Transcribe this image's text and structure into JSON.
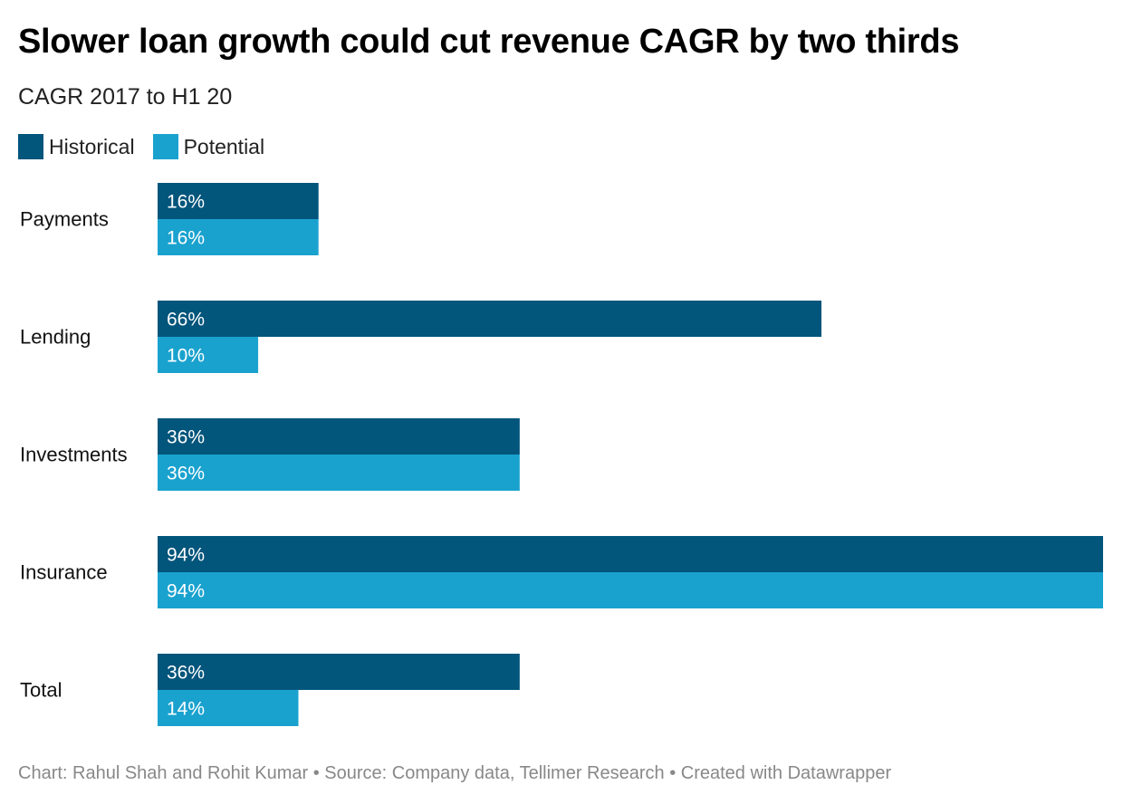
{
  "title": "Slower loan growth could cut revenue CAGR by two thirds",
  "subtitle": "CAGR 2017 to H1 20",
  "footer": "Chart: Rahul Shah and Rohit Kumar • Source: Company data, Tellimer Research • Created with Datawrapper",
  "colors": {
    "historical": "#02557b",
    "potential": "#1aa2cf"
  },
  "chart_data": {
    "type": "bar",
    "orientation": "horizontal",
    "subtitle": "CAGR 2017 to H1 20",
    "categories": [
      "Payments",
      "Lending",
      "Investments",
      "Insurance",
      "Total"
    ],
    "series": [
      {
        "name": "Historical",
        "color": "#02557b",
        "values": [
          16,
          66,
          36,
          94,
          36
        ],
        "labels": [
          "16%",
          "66%",
          "36%",
          "94%",
          "36%"
        ]
      },
      {
        "name": "Potential",
        "color": "#1aa2cf",
        "values": [
          16,
          10,
          36,
          94,
          14
        ],
        "labels": [
          "16%",
          "10%",
          "36%",
          "94%",
          "14%"
        ]
      }
    ],
    "unit": "%",
    "xlim": [
      0,
      94
    ],
    "grid": false,
    "legend": "top-left"
  }
}
